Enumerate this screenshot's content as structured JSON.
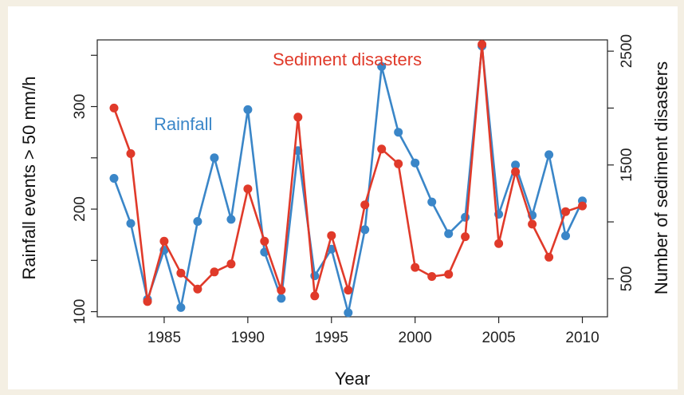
{
  "chart_data": {
    "type": "line",
    "xlabel": "Year",
    "ylabel_left": "Rainfall events > 50 mm/h",
    "ylabel_right": "Number of sediment disasters",
    "x_ticks": [
      1985,
      1990,
      1995,
      2000,
      2005,
      2010
    ],
    "y_left_ticks": [
      100,
      150,
      200,
      250,
      300,
      350
    ],
    "y_left_tick_labels": [
      "100",
      "",
      "200",
      "",
      "300",
      ""
    ],
    "y_right_ticks": [
      500,
      1000,
      1500,
      2000,
      2500
    ],
    "y_right_tick_labels": [
      "500",
      "",
      "1500",
      "",
      "2500"
    ],
    "xlim": [
      1981,
      2011.5
    ],
    "ylim_left": [
      95,
      365
    ],
    "ylim_right": [
      166,
      2599
    ],
    "grid": false,
    "legend": "none (inline annotations)",
    "annotations": [
      {
        "text": "Rainfall",
        "series": "Rainfall"
      },
      {
        "text": "Sediment disasters",
        "series": "Sediment disasters"
      }
    ],
    "series": [
      {
        "name": "Rainfall",
        "axis": "left",
        "color": "#3a86c8",
        "x": [
          1982,
          1983,
          1984,
          1985,
          1986,
          1987,
          1988,
          1989,
          1990,
          1991,
          1992,
          1993,
          1994,
          1995,
          1996,
          1997,
          1998,
          1999,
          2000,
          2001,
          2002,
          2003,
          2004,
          2005,
          2006,
          2007,
          2008,
          2009,
          2010
        ],
        "values": [
          230,
          186,
          112,
          160,
          104,
          188,
          250,
          190,
          297,
          158,
          113,
          257,
          135,
          161,
          99,
          180,
          339,
          275,
          245,
          207,
          176,
          192,
          359,
          195,
          243,
          194,
          253,
          174,
          208
        ]
      },
      {
        "name": "Sediment disasters",
        "axis": "right",
        "color": "#e03a2a",
        "x": [
          1982,
          1983,
          1984,
          1985,
          1986,
          1987,
          1988,
          1989,
          1990,
          1991,
          1992,
          1993,
          1994,
          1995,
          1996,
          1997,
          1998,
          1999,
          2000,
          2001,
          2002,
          2003,
          2004,
          2005,
          2006,
          2007,
          2008,
          2009,
          2010
        ],
        "values": [
          2000,
          1600,
          300,
          830,
          550,
          410,
          560,
          630,
          1290,
          830,
          400,
          1920,
          350,
          880,
          400,
          1150,
          1640,
          1510,
          600,
          520,
          540,
          870,
          2560,
          810,
          1440,
          980,
          690,
          1090,
          1140
        ]
      }
    ]
  },
  "labels": {
    "xlabel": "Year",
    "ylabel_left": "Rainfall events > 50 mm/h",
    "ylabel_right": "Number of sediment disasters",
    "annotation_rainfall": "Rainfall",
    "annotation_sediment": "Sediment disasters"
  }
}
